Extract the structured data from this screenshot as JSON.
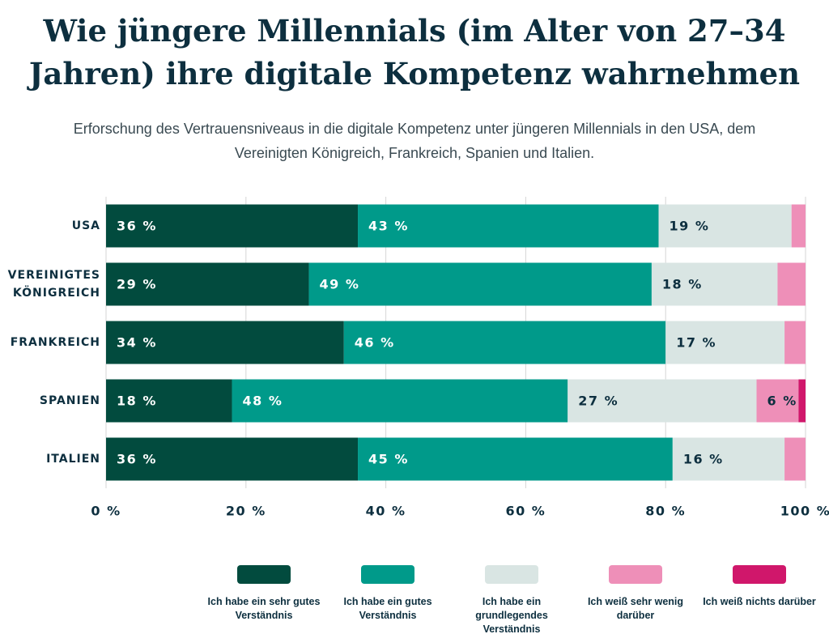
{
  "chart_data": {
    "type": "stacked_bar_horizontal",
    "title": "Wie jüngere Millennials (im Alter von 27–34 Jahren) ihre digitale Kompetenz wahrnehmen",
    "subtitle": "Erforschung des Vertrauensniveaus in die digitale Kompetenz unter jüngeren Millennials in den USA, dem Vereinigten Königreich, Frankreich, Spanien und Italien.",
    "categories": [
      "USA",
      "VEREINIGTES KÖNIGREICH",
      "FRANKREICH",
      "SPANIEN",
      "ITALIEN"
    ],
    "series": [
      {
        "name": "Ich habe ein sehr gutes Verständnis",
        "color": "#024b3e",
        "values": [
          36,
          29,
          34,
          18,
          36
        ],
        "value_labels": [
          "36 %",
          "29 %",
          "34 %",
          "18 %",
          "36 %"
        ]
      },
      {
        "name": "Ich habe ein gutes Verständnis",
        "color": "#009a8a",
        "values": [
          43,
          49,
          46,
          48,
          45
        ],
        "value_labels": [
          "43 %",
          "49 %",
          "46 %",
          "48 %",
          "45 %"
        ]
      },
      {
        "name": "Ich habe ein grundlegendes Verständnis",
        "color": "#d9e5e3",
        "values": [
          19,
          18,
          17,
          27,
          16
        ],
        "value_labels": [
          "19 %",
          "18 %",
          "17 %",
          "27 %",
          "16 %"
        ]
      },
      {
        "name": "Ich weiß sehr wenig darüber",
        "color": "#ee8fb8",
        "values": [
          2,
          4,
          3,
          6,
          3
        ],
        "value_labels": [
          null,
          null,
          null,
          "6 %",
          null
        ]
      },
      {
        "name": "Ich weiß nichts darüber",
        "color": "#d0176b",
        "values": [
          0,
          0,
          0,
          1,
          0
        ],
        "value_labels": [
          null,
          null,
          null,
          null,
          null
        ]
      }
    ],
    "xlim": [
      0,
      100
    ],
    "xticks": [
      {
        "value": 0,
        "label": "0 %"
      },
      {
        "value": 20,
        "label": "20 %"
      },
      {
        "value": 40,
        "label": "40 %"
      },
      {
        "value": 60,
        "label": "60 %"
      },
      {
        "value": 80,
        "label": "80 %"
      },
      {
        "value": 100,
        "label": "100 %"
      }
    ],
    "grid": true
  }
}
